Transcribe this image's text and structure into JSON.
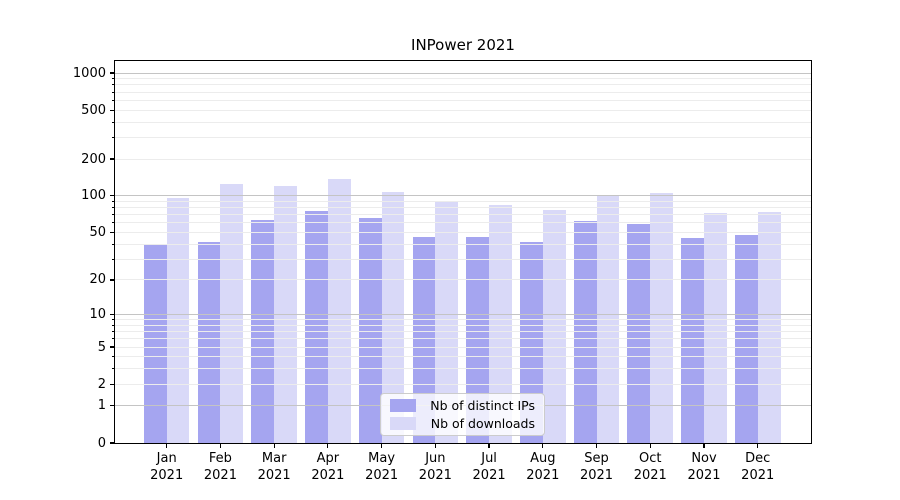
{
  "chart_data": {
    "type": "bar",
    "title": "INPower 2021",
    "categories": [
      "Jan",
      "Feb",
      "Mar",
      "Apr",
      "May",
      "Jun",
      "Jul",
      "Aug",
      "Sep",
      "Oct",
      "Nov",
      "Dec"
    ],
    "x_tick_year": "2021",
    "series": [
      {
        "name": "Nb of distinct IPs",
        "color": "#a5a5f0",
        "values": [
          40,
          42,
          63,
          75,
          66,
          46,
          46,
          42,
          62,
          59,
          45,
          48
        ]
      },
      {
        "name": "Nb of downloads",
        "color": "#d9d9f8",
        "values": [
          96,
          125,
          120,
          137,
          108,
          90,
          84,
          77,
          101,
          105,
          72,
          74
        ]
      }
    ],
    "xlabel": "",
    "ylabel": "",
    "y_axis": {
      "scale": "log10(1+y)",
      "tick_labels": [
        0,
        1,
        2,
        5,
        10,
        20,
        50,
        100,
        200,
        500,
        1000
      ],
      "major_grid_at": [
        1,
        10,
        100,
        1000
      ],
      "ylim": [
        0,
        1276
      ]
    },
    "grid": true,
    "legend": {
      "position": "lower center",
      "entries": [
        "Nb of distinct IPs",
        "Nb of downloads"
      ]
    },
    "colors": {
      "bar_distinct_ips": "#a5a5f0",
      "bar_downloads": "#d9d9f8",
      "major_grid": "#c4c4c4",
      "minor_grid": "#ececec",
      "spine": "#000000",
      "background": "#ffffff",
      "text": "#000000"
    }
  }
}
